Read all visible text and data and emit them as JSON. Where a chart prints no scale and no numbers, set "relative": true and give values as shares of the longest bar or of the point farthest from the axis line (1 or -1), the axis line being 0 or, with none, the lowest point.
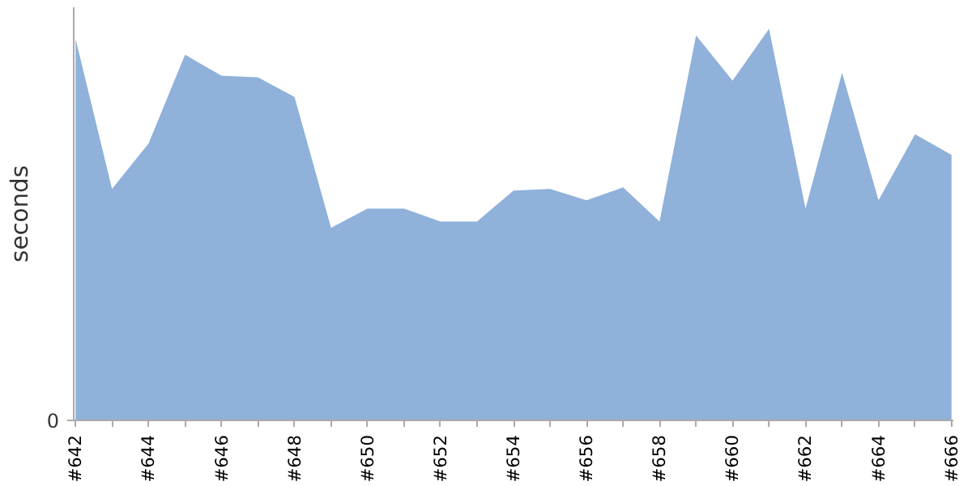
{
  "chart_data": {
    "type": "area",
    "relative": true,
    "ylabel": "seconds",
    "annotations": [
      "0"
    ],
    "categories": [
      "#642",
      null,
      "#644",
      null,
      "#646",
      null,
      "#648",
      null,
      "#650",
      null,
      "#652",
      null,
      "#654",
      null,
      "#656",
      null,
      "#658",
      null,
      "#660",
      null,
      "#662",
      null,
      "#664",
      null,
      "#666"
    ],
    "series": [
      {
        "color": "#8fb1da",
        "values": [
          0.975,
          0.591,
          0.707,
          0.934,
          0.88,
          0.876,
          0.826,
          0.492,
          0.541,
          0.541,
          0.508,
          0.508,
          0.587,
          0.591,
          0.562,
          0.595,
          0.508,
          0.983,
          0.868,
          1.0,
          0.541,
          0.888,
          0.562,
          0.731,
          0.678
        ]
      }
    ],
    "grid": false
  }
}
